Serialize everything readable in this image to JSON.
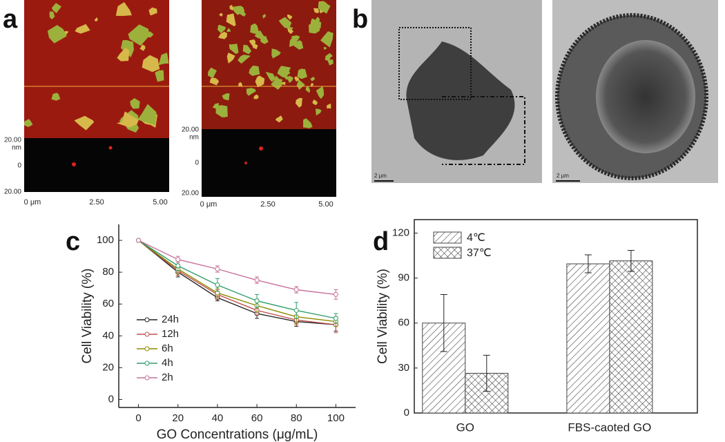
{
  "panel_a": {
    "label": "a",
    "images": [
      {
        "x_ticks": [
          "0 μm",
          "2.50",
          "5.00"
        ],
        "y_ticks": [
          "20.00",
          "0",
          "20.00"
        ],
        "y_unit": "nm"
      },
      {
        "x_ticks": [
          "0 μm",
          "2.50",
          "5.00"
        ],
        "y_ticks": [
          "20.00",
          "0",
          "20.00"
        ],
        "y_unit": "nm"
      }
    ]
  },
  "panel_b": {
    "label": "b",
    "images": [
      {
        "scale_bar": "2 μm"
      },
      {
        "scale_bar": "2 μm"
      }
    ]
  },
  "chart_data": [
    {
      "type": "line",
      "label": "c",
      "x_label": "GO  Concentrations (μg/mL)",
      "y_label": "Cell  Viability (%)",
      "x": [
        0,
        20,
        40,
        60,
        80,
        100
      ],
      "xlim": [
        -10,
        110
      ],
      "ylim": [
        -5,
        110
      ],
      "xticks": [
        0,
        20,
        40,
        60,
        80,
        100
      ],
      "yticks": [
        0,
        20,
        40,
        60,
        80,
        100
      ],
      "frame": "axes",
      "legend": "lower-left",
      "series": [
        {
          "name": "24h",
          "color": "#222222",
          "values": [
            100,
            80,
            64,
            54,
            49,
            47
          ],
          "errors": [
            0,
            3,
            2,
            3,
            3,
            4
          ]
        },
        {
          "name": "12h",
          "color": "#c0504d",
          "values": [
            100,
            81,
            66,
            56,
            50,
            47
          ],
          "errors": [
            0,
            3,
            3,
            3,
            3,
            5
          ]
        },
        {
          "name": "6h",
          "color": "#8a8a00",
          "values": [
            100,
            82,
            67,
            59,
            52,
            49
          ],
          "errors": [
            0,
            3,
            3,
            4,
            4,
            3
          ]
        },
        {
          "name": "4h",
          "color": "#2e9e6a",
          "values": [
            100,
            84,
            72,
            62,
            56,
            51
          ],
          "errors": [
            0,
            3,
            4,
            4,
            5,
            3
          ]
        },
        {
          "name": "2h",
          "color": "#c8709a",
          "values": [
            100,
            88,
            82,
            75,
            69,
            66
          ],
          "errors": [
            0,
            2,
            2,
            2,
            2,
            3
          ]
        }
      ]
    },
    {
      "type": "bar",
      "label": "d",
      "y_label": "Cell  Viability (%)",
      "categories": [
        "GO",
        "FBS-caoted GO"
      ],
      "ylim": [
        0,
        129
      ],
      "yticks": [
        0,
        30,
        60,
        90,
        120
      ],
      "frame": "box",
      "legend": "upper-left",
      "series": [
        {
          "name": "4℃",
          "color": "#444444",
          "pattern": "hatch",
          "values": [
            60,
            99.5
          ],
          "errors": [
            19,
            6
          ]
        },
        {
          "name": "37℃",
          "color": "#444444",
          "pattern": "crosshatch",
          "values": [
            26.5,
            101.5
          ],
          "errors": [
            12,
            7
          ]
        }
      ]
    }
  ]
}
